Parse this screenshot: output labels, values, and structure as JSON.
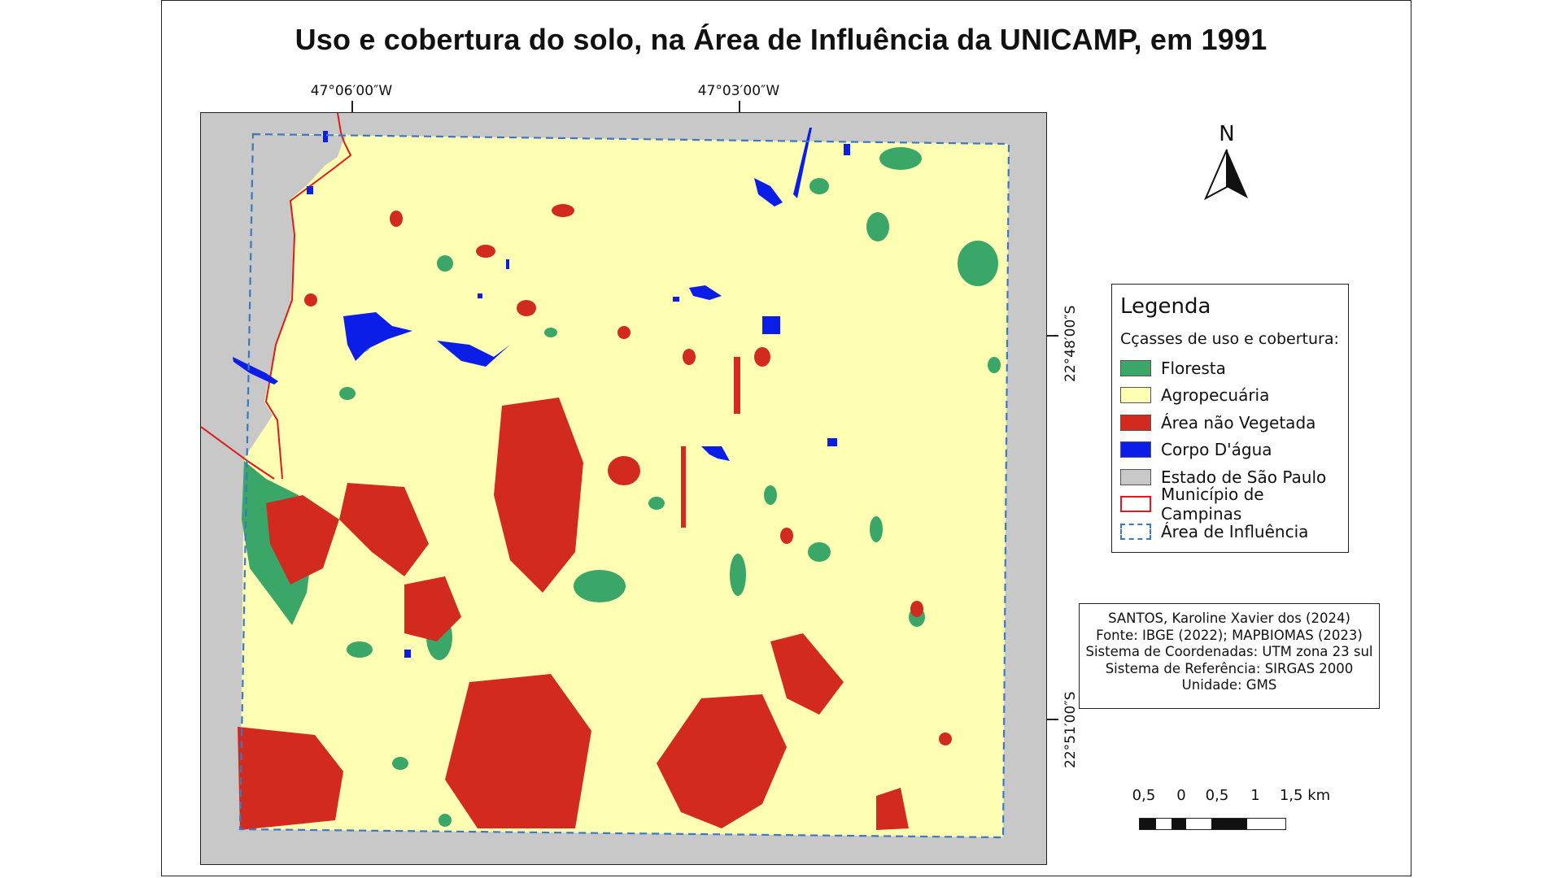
{
  "title": "Uso e cobertura do solo, na Área de Influência da UNICAMP, em 1991",
  "coordinates": {
    "top": [
      "47°06′00″W",
      "47°03′00″W"
    ],
    "right": [
      "22°48′00″S",
      "22°51′00″S"
    ]
  },
  "north_arrow": {
    "label": "N",
    "icon": "north-arrow-icon"
  },
  "legend": {
    "title": "Legenda",
    "subtitle": "Cçasses de uso e cobertura:",
    "items": [
      {
        "label": "Floresta",
        "color": "#3aa668",
        "style": "fill"
      },
      {
        "label": "Agropecuária",
        "color": "#ffffb4",
        "style": "fill"
      },
      {
        "label": "Área não Vegetada",
        "color": "#d32a1f",
        "style": "fill"
      },
      {
        "label": "Corpo D'água",
        "color": "#0b1ee8",
        "style": "fill"
      },
      {
        "label": "Estado de São Paulo",
        "color": "#c8c8c8",
        "style": "fill"
      },
      {
        "label": "Município de Campinas",
        "color": "#e01a1a",
        "style": "outline"
      },
      {
        "label": "Área de Influência",
        "color": "#3a78c0",
        "style": "dashed"
      }
    ]
  },
  "credits": [
    "SANTOS, Karoline Xavier dos (2024)",
    "Fonte: IBGE (2022); MAPBIOMAS (2023)",
    "Sistema de Coordenadas: UTM zona 23 sul",
    "Sistema de Referência: SIRGAS 2000",
    "Unidade: GMS"
  ],
  "scale_bar": {
    "labels": [
      "0,5",
      "0",
      "0,5",
      "1",
      "1,5 km"
    ]
  }
}
